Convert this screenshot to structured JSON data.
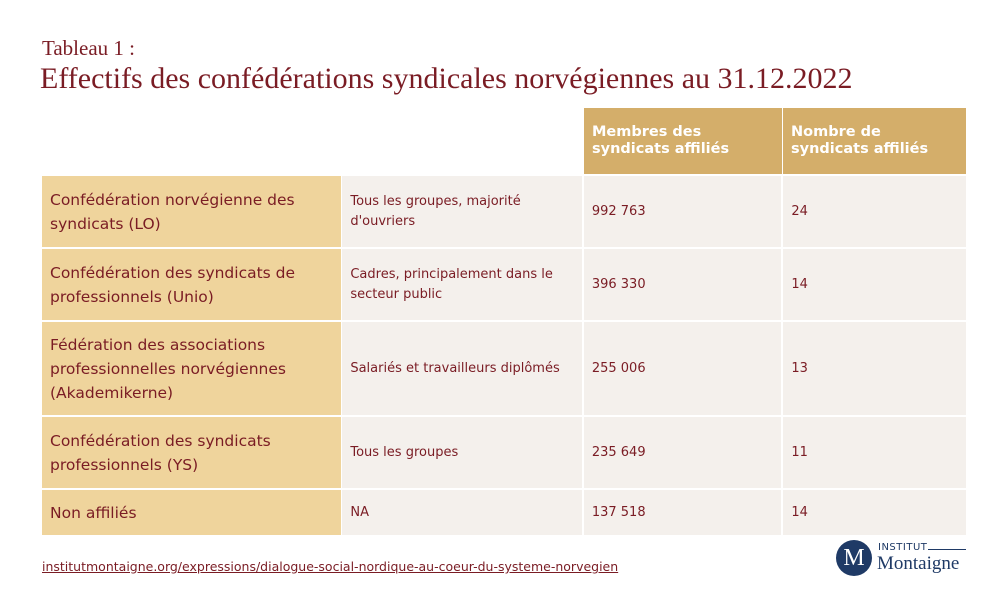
{
  "header": {
    "kicker": "Tableau 1 :",
    "title": "Effectifs des confédérations syndicales norvégiennes au 31.12.2022"
  },
  "table": {
    "columns": {
      "members": "Membres des syndicats affiliés",
      "count": "Nombre de syndicats affiliés"
    },
    "rows": [
      {
        "name": "Confédération norvégienne des syndicats (LO)",
        "description": "Tous les groupes, majorité d'ouvriers",
        "members": "992 763",
        "count": "24"
      },
      {
        "name": "Confédération des syndicats de professionnels (Unio)",
        "description": "Cadres, principalement dans le secteur public",
        "members": "396 330",
        "count": "14"
      },
      {
        "name": "Fédération des associations professionnelles norvégiennes (Akademikerne)",
        "description": "Salariés et travailleurs diplômés",
        "members": "255 006",
        "count": "13"
      },
      {
        "name": "Confédération des syndicats professionnels (YS)",
        "description": "Tous les groupes",
        "members": "235 649",
        "count": "11"
      },
      {
        "name": "Non affiliés",
        "description": "NA",
        "members": "137 518",
        "count": "14"
      }
    ]
  },
  "footer": {
    "source_link": "institutmontaigne.org/expressions/dialogue-social-nordique-au-coeur-du-systeme-norvegien",
    "logo": {
      "badge": "M",
      "top": "INSTITUT",
      "main": "Montaigne"
    }
  },
  "colors": {
    "accent": "#7a1c24",
    "header_gold": "#d4ae6a",
    "name_cell": "#efd49c",
    "data_cell": "#f4f0ec",
    "logo_navy": "#1f3a66"
  }
}
